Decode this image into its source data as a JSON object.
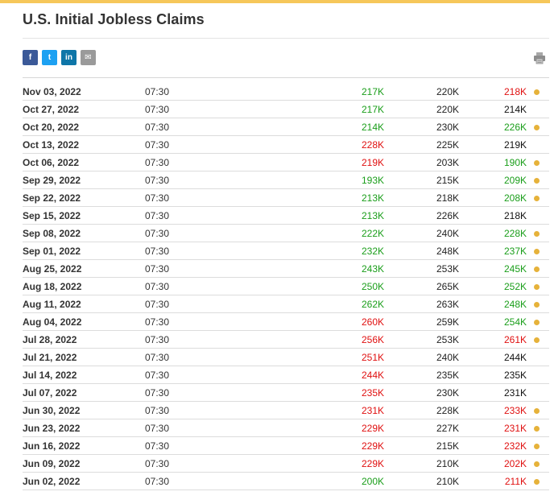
{
  "title": "U.S. Initial Jobless Claims",
  "colors": {
    "accent": "#f6c75a",
    "green": "#1a9e1a",
    "red": "#e01010",
    "dot": "#e6b23a",
    "facebook": "#3b5998",
    "twitter": "#1da1f2",
    "linkedin": "#0e76a8",
    "email": "#9a9a9a"
  },
  "share": [
    {
      "name": "facebook-share-button",
      "glyph": "f",
      "color": "#3b5998"
    },
    {
      "name": "twitter-share-button",
      "glyph": "t",
      "color": "#1da1f2"
    },
    {
      "name": "linkedin-share-button",
      "glyph": "in",
      "color": "#0e76a8"
    },
    {
      "name": "email-share-button",
      "glyph": "✉",
      "color": "#9a9a9a"
    }
  ],
  "icons": {
    "print": "printer-icon"
  },
  "rows": [
    {
      "date": "Nov 03, 2022",
      "time": "07:30",
      "actual": "217K",
      "actual_color": "green",
      "forecast": "220K",
      "previous": "218K",
      "previous_color": "red",
      "dot": true
    },
    {
      "date": "Oct 27, 2022",
      "time": "07:30",
      "actual": "217K",
      "actual_color": "green",
      "forecast": "220K",
      "previous": "214K",
      "previous_color": "black",
      "dot": false
    },
    {
      "date": "Oct 20, 2022",
      "time": "07:30",
      "actual": "214K",
      "actual_color": "green",
      "forecast": "230K",
      "previous": "226K",
      "previous_color": "green",
      "dot": true
    },
    {
      "date": "Oct 13, 2022",
      "time": "07:30",
      "actual": "228K",
      "actual_color": "red",
      "forecast": "225K",
      "previous": "219K",
      "previous_color": "black",
      "dot": false
    },
    {
      "date": "Oct 06, 2022",
      "time": "07:30",
      "actual": "219K",
      "actual_color": "red",
      "forecast": "203K",
      "previous": "190K",
      "previous_color": "green",
      "dot": true
    },
    {
      "date": "Sep 29, 2022",
      "time": "07:30",
      "actual": "193K",
      "actual_color": "green",
      "forecast": "215K",
      "previous": "209K",
      "previous_color": "green",
      "dot": true
    },
    {
      "date": "Sep 22, 2022",
      "time": "07:30",
      "actual": "213K",
      "actual_color": "green",
      "forecast": "218K",
      "previous": "208K",
      "previous_color": "green",
      "dot": true
    },
    {
      "date": "Sep 15, 2022",
      "time": "07:30",
      "actual": "213K",
      "actual_color": "green",
      "forecast": "226K",
      "previous": "218K",
      "previous_color": "black",
      "dot": false
    },
    {
      "date": "Sep 08, 2022",
      "time": "07:30",
      "actual": "222K",
      "actual_color": "green",
      "forecast": "240K",
      "previous": "228K",
      "previous_color": "green",
      "dot": true
    },
    {
      "date": "Sep 01, 2022",
      "time": "07:30",
      "actual": "232K",
      "actual_color": "green",
      "forecast": "248K",
      "previous": "237K",
      "previous_color": "green",
      "dot": true
    },
    {
      "date": "Aug 25, 2022",
      "time": "07:30",
      "actual": "243K",
      "actual_color": "green",
      "forecast": "253K",
      "previous": "245K",
      "previous_color": "green",
      "dot": true
    },
    {
      "date": "Aug 18, 2022",
      "time": "07:30",
      "actual": "250K",
      "actual_color": "green",
      "forecast": "265K",
      "previous": "252K",
      "previous_color": "green",
      "dot": true
    },
    {
      "date": "Aug 11, 2022",
      "time": "07:30",
      "actual": "262K",
      "actual_color": "green",
      "forecast": "263K",
      "previous": "248K",
      "previous_color": "green",
      "dot": true
    },
    {
      "date": "Aug 04, 2022",
      "time": "07:30",
      "actual": "260K",
      "actual_color": "red",
      "forecast": "259K",
      "previous": "254K",
      "previous_color": "green",
      "dot": true
    },
    {
      "date": "Jul 28, 2022",
      "time": "07:30",
      "actual": "256K",
      "actual_color": "red",
      "forecast": "253K",
      "previous": "261K",
      "previous_color": "red",
      "dot": true
    },
    {
      "date": "Jul 21, 2022",
      "time": "07:30",
      "actual": "251K",
      "actual_color": "red",
      "forecast": "240K",
      "previous": "244K",
      "previous_color": "black",
      "dot": false
    },
    {
      "date": "Jul 14, 2022",
      "time": "07:30",
      "actual": "244K",
      "actual_color": "red",
      "forecast": "235K",
      "previous": "235K",
      "previous_color": "black",
      "dot": false
    },
    {
      "date": "Jul 07, 2022",
      "time": "07:30",
      "actual": "235K",
      "actual_color": "red",
      "forecast": "230K",
      "previous": "231K",
      "previous_color": "black",
      "dot": false
    },
    {
      "date": "Jun 30, 2022",
      "time": "07:30",
      "actual": "231K",
      "actual_color": "red",
      "forecast": "228K",
      "previous": "233K",
      "previous_color": "red",
      "dot": true
    },
    {
      "date": "Jun 23, 2022",
      "time": "07:30",
      "actual": "229K",
      "actual_color": "red",
      "forecast": "227K",
      "previous": "231K",
      "previous_color": "red",
      "dot": true
    },
    {
      "date": "Jun 16, 2022",
      "time": "07:30",
      "actual": "229K",
      "actual_color": "red",
      "forecast": "215K",
      "previous": "232K",
      "previous_color": "red",
      "dot": true
    },
    {
      "date": "Jun 09, 2022",
      "time": "07:30",
      "actual": "229K",
      "actual_color": "red",
      "forecast": "210K",
      "previous": "202K",
      "previous_color": "red",
      "dot": true
    },
    {
      "date": "Jun 02, 2022",
      "time": "07:30",
      "actual": "200K",
      "actual_color": "green",
      "forecast": "210K",
      "previous": "211K",
      "previous_color": "red",
      "dot": true
    }
  ]
}
